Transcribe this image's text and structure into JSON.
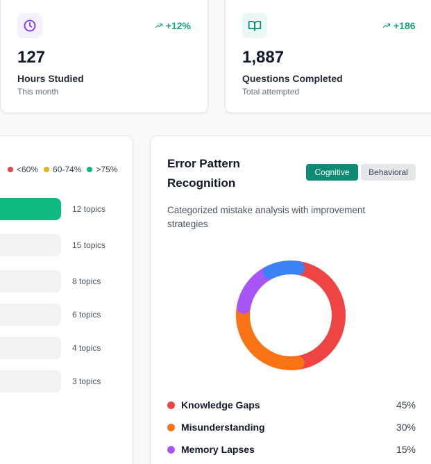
{
  "stats": [
    {
      "value": "127",
      "label": "Hours Studied",
      "sub": "This month",
      "trend": "+12%",
      "icon": "clock-icon",
      "icon_color": "#7c3aed"
    },
    {
      "value": "1,887",
      "label": "Questions Completed",
      "sub": "Total attempted",
      "trend": "+186",
      "icon": "book-open-icon",
      "icon_color": "#0f8a73"
    }
  ],
  "topics": {
    "legend": [
      {
        "label": "<60%",
        "color": "#ef4444"
      },
      {
        "label": "60-74%",
        "color": "#eab308"
      },
      {
        "label": ">75%",
        "color": "#10b981"
      }
    ],
    "rows": [
      {
        "count": "12 topics",
        "fill": 1.0,
        "color": "#10b981"
      },
      {
        "count": "15 topics",
        "fill": 0,
        "color": "#10b981"
      },
      {
        "count": "8 topics",
        "fill": 0,
        "color": "#10b981"
      },
      {
        "count": "6 topics",
        "fill": 0,
        "color": "#10b981"
      },
      {
        "count": "4 topics",
        "fill": 0,
        "color": "#10b981"
      },
      {
        "count": "3 topics",
        "fill": 0,
        "color": "#10b981"
      }
    ]
  },
  "error_patterns": {
    "title": "Error Pattern Recognition",
    "tabs": {
      "cognitive": "Cognitive",
      "behavioral": "Behavioral",
      "active": "cognitive"
    },
    "description": "Categorized mistake analysis with improvement strategies",
    "items": [
      {
        "name": "Knowledge Gaps",
        "percent": "45%",
        "value": 45,
        "color": "#ef4444"
      },
      {
        "name": "Misunderstanding",
        "percent": "30%",
        "value": 30,
        "color": "#f97316"
      },
      {
        "name": "Memory Lapses",
        "percent": "15%",
        "value": 15,
        "color": "#a855f7"
      },
      {
        "name": "",
        "percent": "",
        "value": 10,
        "color": "#3b82f6"
      }
    ]
  }
}
